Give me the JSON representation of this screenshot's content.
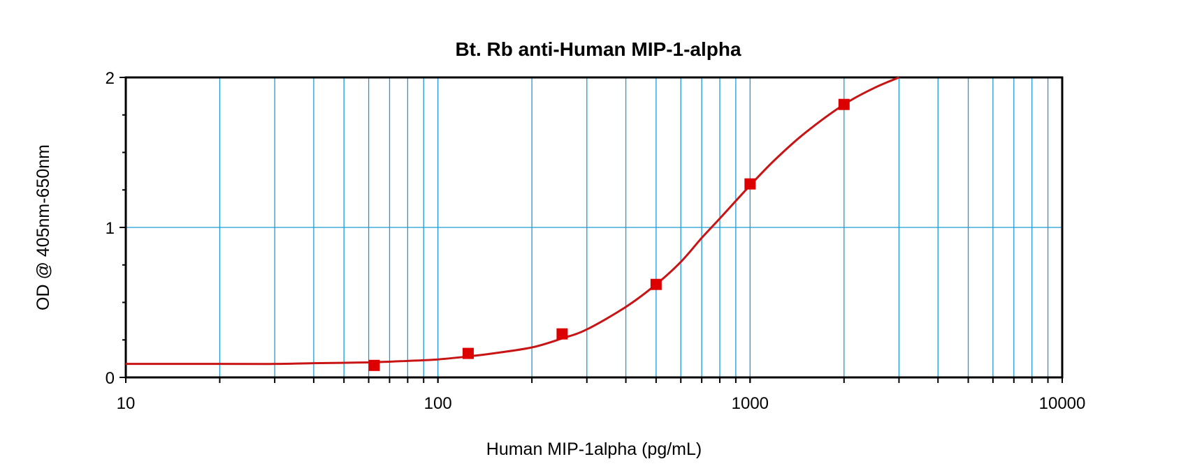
{
  "chart_data": {
    "type": "scatter",
    "title": "Bt. Rb anti-Human MIP-1-alpha",
    "xlabel": "Human MIP-1alpha (pg/mL)",
    "ylabel": "OD @ 405nm-650nm",
    "x_scale": "log",
    "xlim": [
      10,
      10000
    ],
    "ylim": [
      0,
      2
    ],
    "x_ticks": [
      10,
      100,
      1000,
      10000
    ],
    "x_tick_labels": [
      "10",
      "100",
      "1000",
      "10000"
    ],
    "y_ticks": [
      0,
      1,
      2
    ],
    "y_tick_labels": [
      "0",
      "1",
      "2"
    ],
    "grid": true,
    "legend": "none",
    "series": [
      {
        "points": [
          {
            "x": 62.5,
            "y": 0.08
          },
          {
            "x": 125,
            "y": 0.16
          },
          {
            "x": 250,
            "y": 0.29
          },
          {
            "x": 500,
            "y": 0.62
          },
          {
            "x": 1000,
            "y": 1.29
          },
          {
            "x": 2000,
            "y": 1.82
          }
        ],
        "fit_curve": [
          {
            "x": 10,
            "y": 0.09
          },
          {
            "x": 20,
            "y": 0.09
          },
          {
            "x": 30,
            "y": 0.09
          },
          {
            "x": 40,
            "y": 0.095
          },
          {
            "x": 60,
            "y": 0.1
          },
          {
            "x": 80,
            "y": 0.11
          },
          {
            "x": 100,
            "y": 0.12
          },
          {
            "x": 125,
            "y": 0.14
          },
          {
            "x": 150,
            "y": 0.16
          },
          {
            "x": 200,
            "y": 0.2
          },
          {
            "x": 250,
            "y": 0.26
          },
          {
            "x": 300,
            "y": 0.32
          },
          {
            "x": 400,
            "y": 0.47
          },
          {
            "x": 500,
            "y": 0.62
          },
          {
            "x": 600,
            "y": 0.77
          },
          {
            "x": 700,
            "y": 0.93
          },
          {
            "x": 800,
            "y": 1.06
          },
          {
            "x": 1000,
            "y": 1.28
          },
          {
            "x": 1200,
            "y": 1.45
          },
          {
            "x": 1500,
            "y": 1.63
          },
          {
            "x": 2000,
            "y": 1.82
          },
          {
            "x": 2500,
            "y": 1.93
          },
          {
            "x": 3000,
            "y": 2.0
          }
        ]
      }
    ],
    "colors": {
      "grid": "#1e9bd7",
      "curve": "#c81414",
      "marker": "#dd0000",
      "frame": "#000000"
    }
  }
}
